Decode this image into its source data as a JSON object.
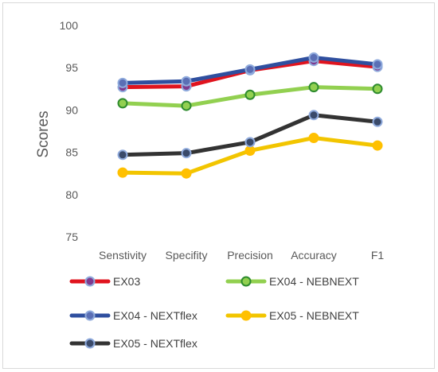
{
  "chart_data": {
    "type": "line",
    "title": "",
    "xlabel": "",
    "ylabel": "Scores",
    "ylim": [
      75,
      100
    ],
    "yticks": [
      75,
      80,
      85,
      90,
      95,
      100
    ],
    "grid": false,
    "legend_position": "bottom",
    "categories": [
      "Senstivity",
      "Specifity",
      "Precision",
      "Accuracy",
      "F1"
    ],
    "series": [
      {
        "name": "EX03",
        "values": [
          92.7,
          92.8,
          94.7,
          95.8,
          95.1
        ],
        "line_color": "#e0141e",
        "marker_fill": "#7e3a8f",
        "marker_edge": "#8faadc"
      },
      {
        "name": "EX04 - NEBNEXT",
        "values": [
          90.8,
          90.5,
          91.8,
          92.7,
          92.5
        ],
        "line_color": "#92d050",
        "marker_fill": "#92d050",
        "marker_edge": "#2e8b2e"
      },
      {
        "name": "EX04 - NEXTflex",
        "values": [
          93.2,
          93.4,
          94.8,
          96.2,
          95.4
        ],
        "line_color": "#2f4f9f",
        "marker_fill": "#5b6fb5",
        "marker_edge": "#8faadc"
      },
      {
        "name": "EX05 - NEBNEXT",
        "values": [
          82.6,
          82.5,
          85.2,
          86.7,
          85.8
        ],
        "line_color": "#f2c500",
        "marker_fill": "#ffc000",
        "marker_edge": "#ffc000"
      },
      {
        "name": "EX05 - NEXTflex",
        "values": [
          84.7,
          84.9,
          86.2,
          89.4,
          88.6
        ],
        "line_color": "#333333",
        "marker_fill": "#3a4a6a",
        "marker_edge": "#8faadc"
      }
    ]
  }
}
